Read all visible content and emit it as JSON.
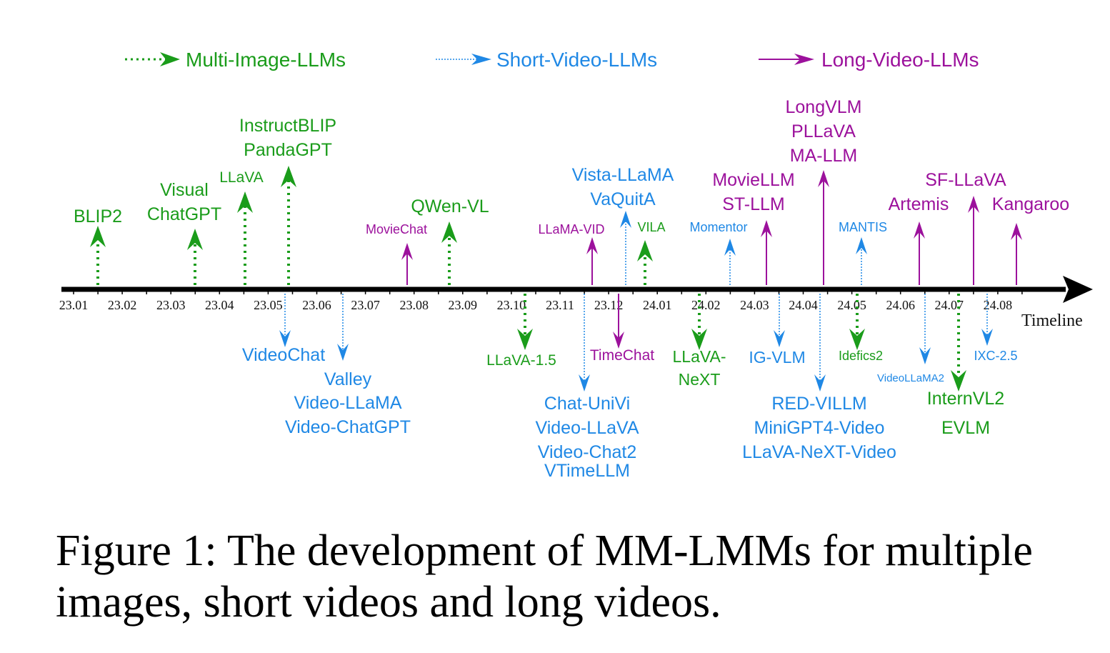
{
  "colors": {
    "multi_image": "#1a9c1a",
    "short_video": "#1f88e5",
    "long_video": "#9c119c",
    "axis": "#000000"
  },
  "legend": {
    "multi_image": "Multi-Image-LLMs",
    "short_video": "Short-Video-LLMs",
    "long_video": "Long-Video-LLMs"
  },
  "axis": {
    "label": "Timeline",
    "ticks": [
      "23.01",
      "23.02",
      "23.03",
      "23.04",
      "23.05",
      "23.06",
      "23.07",
      "23.08",
      "23.09",
      "23.10",
      "23.11",
      "23.12",
      "24.01",
      "24.02",
      "24.03",
      "24.04",
      "24.05",
      "24.06",
      "24.07",
      "24.08"
    ]
  },
  "entries": [
    {
      "category": "multi_image",
      "date": "23.01",
      "direction": "up",
      "labels": [
        "BLIP2"
      ]
    },
    {
      "category": "multi_image",
      "date": "23.03",
      "direction": "up",
      "labels": [
        "Visual",
        "ChatGPT"
      ]
    },
    {
      "category": "multi_image",
      "date": "23.04",
      "direction": "up",
      "labels": [
        "LLaVA"
      ]
    },
    {
      "category": "multi_image",
      "date": "23.05",
      "direction": "up",
      "labels": [
        "InstructBLIP",
        "PandaGPT"
      ]
    },
    {
      "category": "short_video",
      "date": "23.05",
      "direction": "down",
      "labels": [
        "VideoChat"
      ]
    },
    {
      "category": "short_video",
      "date": "23.06",
      "direction": "down",
      "labels": [
        "Valley",
        "Video-LLaMA",
        "Video-ChatGPT"
      ]
    },
    {
      "category": "long_video",
      "date": "23.07",
      "direction": "up",
      "labels": [
        "MovieChat"
      ]
    },
    {
      "category": "multi_image",
      "date": "23.08",
      "direction": "up",
      "labels": [
        "QWen-VL"
      ]
    },
    {
      "category": "multi_image",
      "date": "23.10",
      "direction": "down",
      "labels": [
        "LLaVA-1.5"
      ]
    },
    {
      "category": "long_video",
      "date": "23.11",
      "direction": "up",
      "labels": [
        "LLaMA-VID"
      ]
    },
    {
      "category": "short_video",
      "date": "23.11",
      "direction": "down",
      "labels": [
        "Chat-UniVi",
        "Video-LLaVA",
        "Video-Chat2",
        "VTimeLLM"
      ]
    },
    {
      "category": "short_video",
      "date": "23.12",
      "direction": "up",
      "labels": [
        "Vista-LLaMA",
        "VaQuitA"
      ]
    },
    {
      "category": "long_video",
      "date": "23.12",
      "direction": "down",
      "labels": [
        "TimeChat"
      ]
    },
    {
      "category": "multi_image",
      "date": "23.12",
      "direction": "up",
      "labels": [
        "VILA"
      ]
    },
    {
      "category": "multi_image",
      "date": "24.01",
      "direction": "down",
      "labels": [
        "LLaVA-",
        "NeXT"
      ]
    },
    {
      "category": "short_video",
      "date": "24.02",
      "direction": "up",
      "labels": [
        "Momentor"
      ]
    },
    {
      "category": "long_video",
      "date": "24.03",
      "direction": "up",
      "labels": [
        "MovieLLM",
        "ST-LLM"
      ]
    },
    {
      "category": "short_video",
      "date": "24.03",
      "direction": "down",
      "labels": [
        "IG-VLM"
      ]
    },
    {
      "category": "long_video",
      "date": "24.04",
      "direction": "up",
      "labels": [
        "LongVLM",
        "PLLaVA",
        "MA-LLM"
      ]
    },
    {
      "category": "short_video",
      "date": "24.04",
      "direction": "down",
      "labels": [
        "RED-VILLM",
        "MiniGPT4-Video",
        "LLaVA-NeXT-Video"
      ]
    },
    {
      "category": "short_video",
      "date": "24.05",
      "direction": "up",
      "labels": [
        "MANTIS"
      ]
    },
    {
      "category": "multi_image",
      "date": "24.05",
      "direction": "down",
      "labels": [
        "Idefics2"
      ]
    },
    {
      "category": "long_video",
      "date": "24.06",
      "direction": "up",
      "labels": [
        "Artemis"
      ]
    },
    {
      "category": "short_video",
      "date": "24.06",
      "direction": "down",
      "labels": [
        "VideoLLaMA2"
      ]
    },
    {
      "category": "long_video",
      "date": "24.07",
      "direction": "up",
      "labels": [
        "SF-LLaVA"
      ]
    },
    {
      "category": "multi_image",
      "date": "24.07",
      "direction": "down",
      "labels": [
        "InternVL2",
        "EVLM"
      ]
    },
    {
      "category": "short_video",
      "date": "24.07",
      "direction": "down",
      "labels": [
        "IXC-2.5"
      ]
    },
    {
      "category": "long_video",
      "date": "24.08",
      "direction": "up",
      "labels": [
        "Kangaroo"
      ]
    }
  ],
  "caption": {
    "text": "Figure 1: The development of MM-LMMs for multiple images, short videos and long videos."
  }
}
